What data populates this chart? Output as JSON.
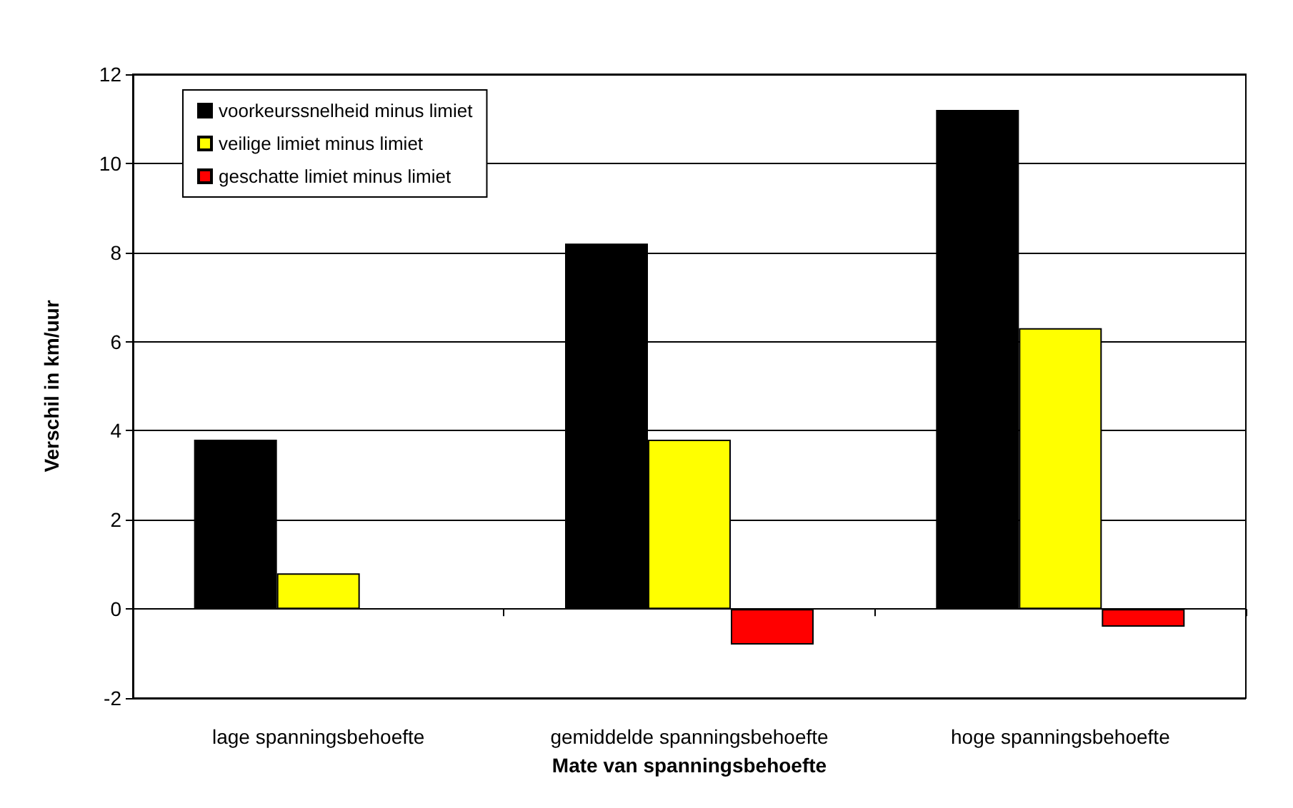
{
  "chart_data": {
    "type": "bar",
    "xlabel": "Mate van spanningsbehoefte",
    "ylabel": "Verschil in km/uur",
    "categories": [
      "lage spanningsbehoefte",
      "gemiddelde spanningsbehoefte",
      "hoge spanningsbehoefte"
    ],
    "series": [
      {
        "name": "voorkeurssnelheid minus limiet",
        "color": "#000000",
        "values": [
          3.8,
          8.2,
          11.2
        ]
      },
      {
        "name": "veilige limiet minus limiet",
        "color": "#ffff00",
        "values": [
          0.8,
          3.8,
          6.3
        ]
      },
      {
        "name": "geschatte limiet minus limiet",
        "color": "#ff0000",
        "values": [
          null,
          -0.8,
          -0.4
        ]
      }
    ],
    "ylim": [
      -2,
      12
    ],
    "yticks": [
      -2,
      0,
      2,
      4,
      6,
      8,
      10,
      12
    ],
    "grid": "y",
    "legend": "top left"
  }
}
